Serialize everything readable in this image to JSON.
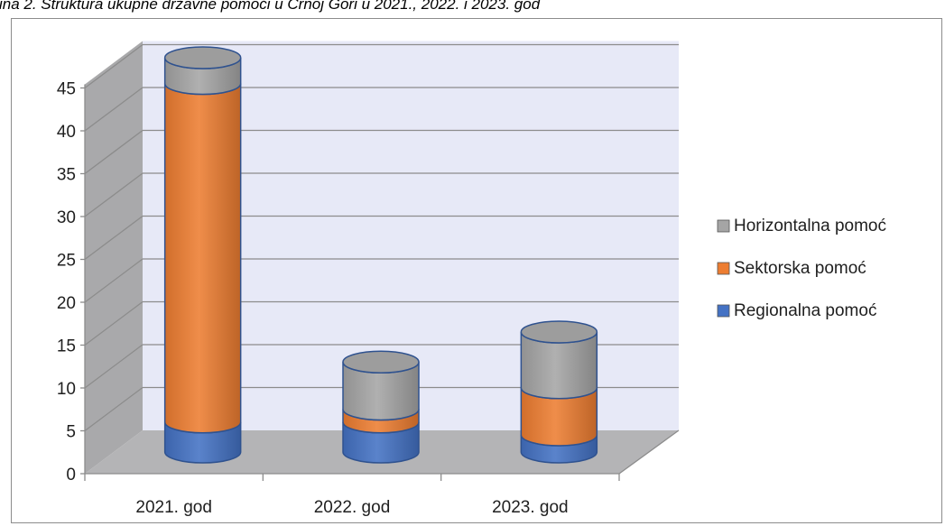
{
  "caption": "ina 2. Struktura ukupne državne pomoći u Crnoj Gori u 2021., 2022. i 2023. god",
  "chart_data": {
    "type": "bar",
    "stacked": true,
    "style": "3d-cylinder",
    "categories": [
      "2021. god",
      "2022. god",
      "2023. god"
    ],
    "yticks": [
      "0",
      "5",
      "10",
      "15",
      "20",
      "25",
      "30",
      "35",
      "40",
      "45"
    ],
    "ylim": [
      0,
      45
    ],
    "grid": true,
    "legend_position": "right",
    "series": [
      {
        "name": "Regionalna pomoć",
        "color": "#4472c4",
        "values": [
          3.5,
          3.5,
          2
        ]
      },
      {
        "name": "Sektorska pomoć",
        "color": "#ed7d31",
        "values": [
          39.5,
          1.5,
          5.5
        ]
      },
      {
        "name": "Horizontalna pomoć",
        "color": "#a5a5a5",
        "values": [
          3,
          5.5,
          6.5
        ]
      }
    ],
    "legend_order": [
      "Horizontalna pomoć",
      "Sektorska pomoć",
      "Regionalna pomoć"
    ]
  }
}
